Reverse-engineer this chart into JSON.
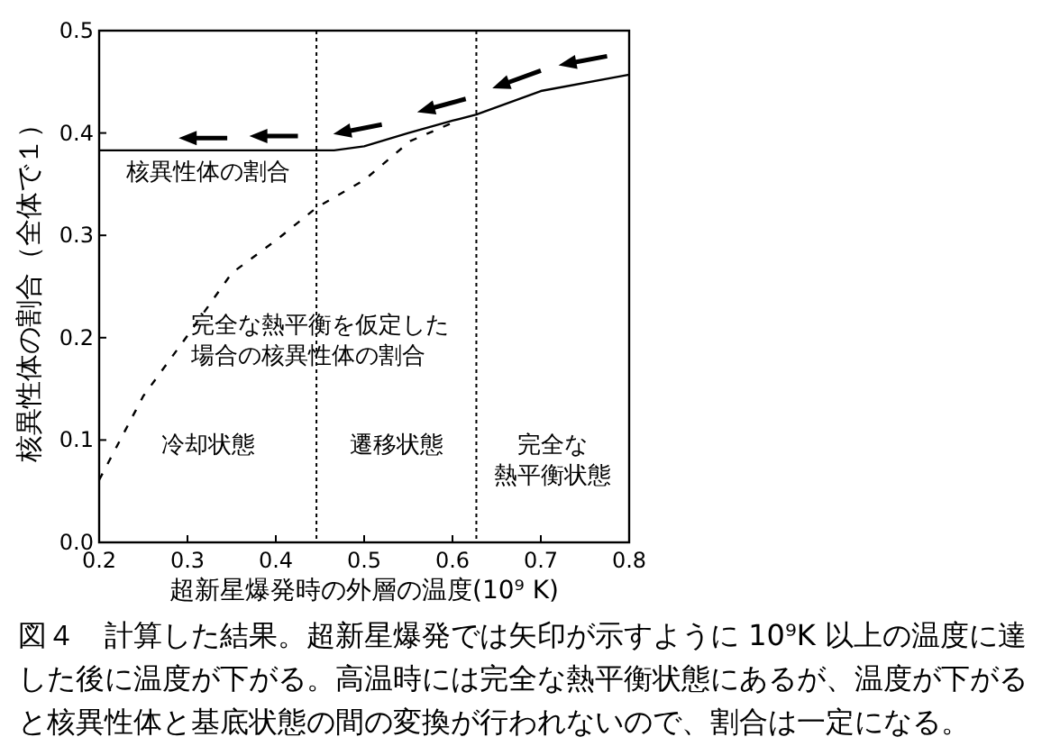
{
  "chart_data": {
    "type": "line",
    "xlabel": "超新星爆発時の外層の温度(10⁹ K)",
    "ylabel": "核異性体の割合（全体で１）",
    "xlim": [
      0.2,
      0.8
    ],
    "ylim": [
      0,
      0.5
    ],
    "xticks": [
      0.2,
      0.3,
      0.4,
      0.5,
      0.6,
      0.7,
      0.8
    ],
    "yticks": [
      {
        "value": 0,
        "label": "0.0"
      },
      0.1,
      0.2,
      0.3,
      0.4,
      0.5
    ],
    "grid": false,
    "series": [
      {
        "name": "核異性体の割合",
        "color": "#000000",
        "line_style": "solid",
        "x": [
          0.2,
          0.3,
          0.4,
          0.466,
          0.5,
          0.55,
          0.6,
          0.627,
          0.7,
          0.8
        ],
        "values": [
          0.383,
          0.383,
          0.383,
          0.383,
          0.387,
          0.4,
          0.412,
          0.418,
          0.441,
          0.457
        ]
      },
      {
        "name": "完全な熱平衡を仮定した場合の核異性体の割合",
        "color": "#000000",
        "line_style": "dashed",
        "x": [
          0.2,
          0.25,
          0.3,
          0.35,
          0.4,
          0.446,
          0.5,
          0.552,
          0.6
        ],
        "values": [
          0.061,
          0.143,
          0.202,
          0.263,
          0.295,
          0.327,
          0.354,
          0.392,
          0.41
        ]
      }
    ],
    "ref_lines": [
      {
        "axis": "x",
        "value": 0.446,
        "line_style": "dotted",
        "color": "#000000"
      },
      {
        "axis": "x",
        "value": 0.627,
        "line_style": "dotted",
        "color": "#000000"
      }
    ],
    "annotations": [
      "冷却状態",
      "遷移状態",
      "完全な熱平衡状態",
      "図４　計算した結果。超新星爆発では矢印が示すように 10⁹K 以上の温度に達した後に温度が下がる。高温時には完全な熱平衡状態にあるが、温度が下がると核異性体と基底状態の間の変換が行われないので、割合は一定になる。"
    ]
  }
}
